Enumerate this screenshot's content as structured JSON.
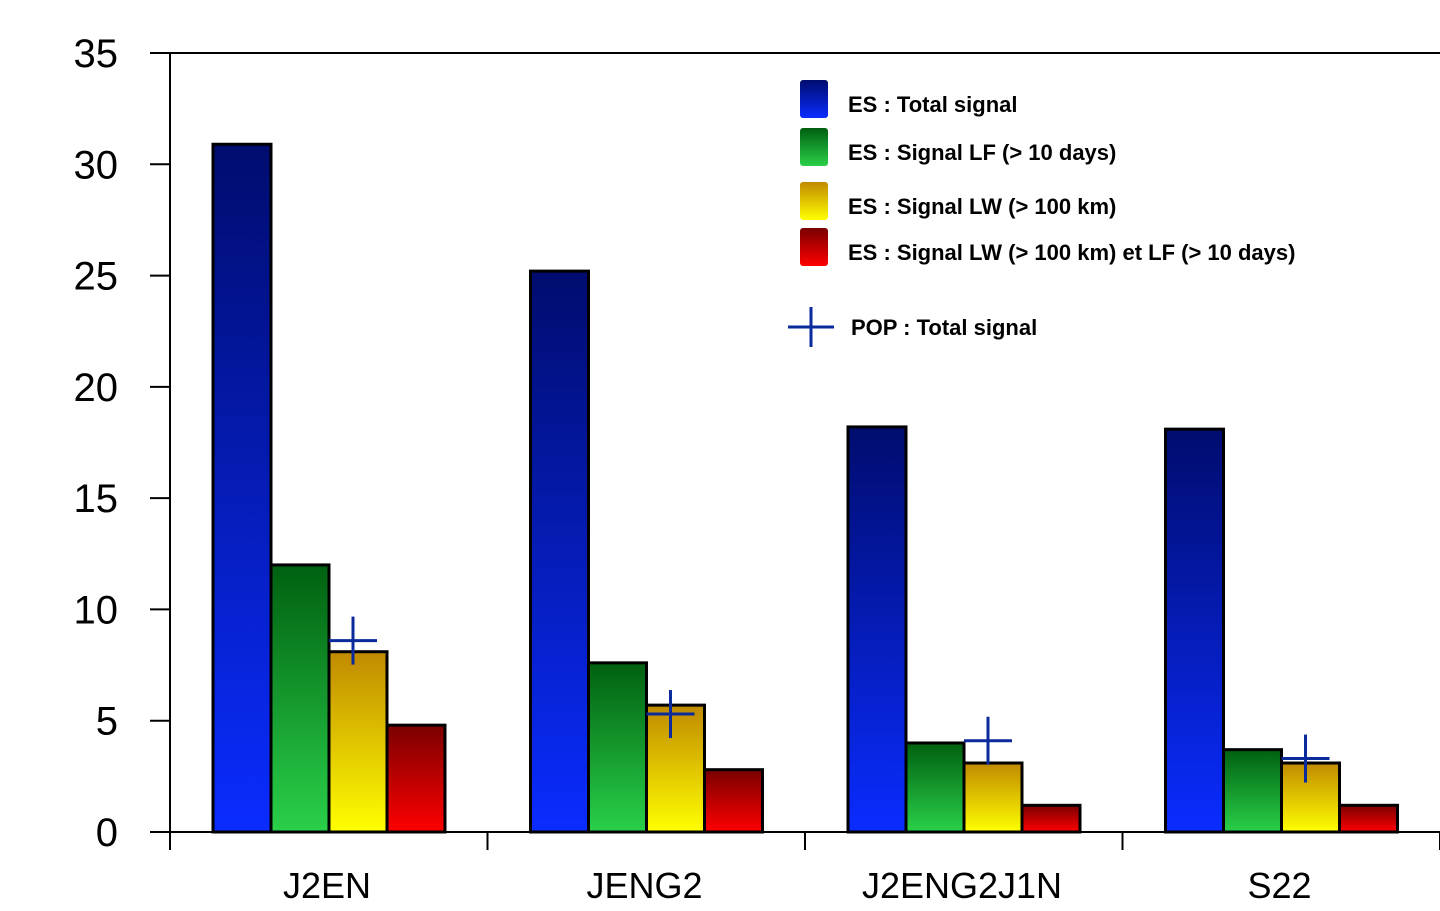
{
  "chart_data": {
    "type": "bar",
    "title": "",
    "xlabel": "",
    "ylabel": "",
    "ylim": [
      0,
      35
    ],
    "yticks": [
      0,
      5,
      10,
      15,
      20,
      25,
      30,
      35
    ],
    "categories": [
      "J2EN",
      "JENG2",
      "J2ENG2J1N",
      "S22"
    ],
    "series": [
      {
        "name": "ES : Total signal",
        "values": [
          30.9,
          25.2,
          18.2,
          18.1
        ],
        "color_top": "#000c6e",
        "color_bottom": "#0a2cff"
      },
      {
        "name": "ES : Signal LF (> 10 days)",
        "values": [
          12.0,
          7.6,
          4.0,
          3.7
        ],
        "color_top": "#006010",
        "color_bottom": "#2ad04a"
      },
      {
        "name": "ES : Signal LW  (> 100 km)",
        "values": [
          8.1,
          5.7,
          3.1,
          3.1
        ],
        "color_top": "#c08a00",
        "color_bottom": "#ffff00"
      },
      {
        "name": "ES : Signal LW (> 100 km) et LF (> 10 days)",
        "values": [
          4.8,
          2.8,
          1.2,
          1.2
        ],
        "color_top": "#7a0000",
        "color_bottom": "#ff0000"
      }
    ],
    "markers": {
      "name": "POP : Total signal",
      "values": [
        8.6,
        5.3,
        4.1,
        3.3
      ],
      "color": "#0b2a9c"
    },
    "legend_position": "top-right",
    "grid": false
  }
}
